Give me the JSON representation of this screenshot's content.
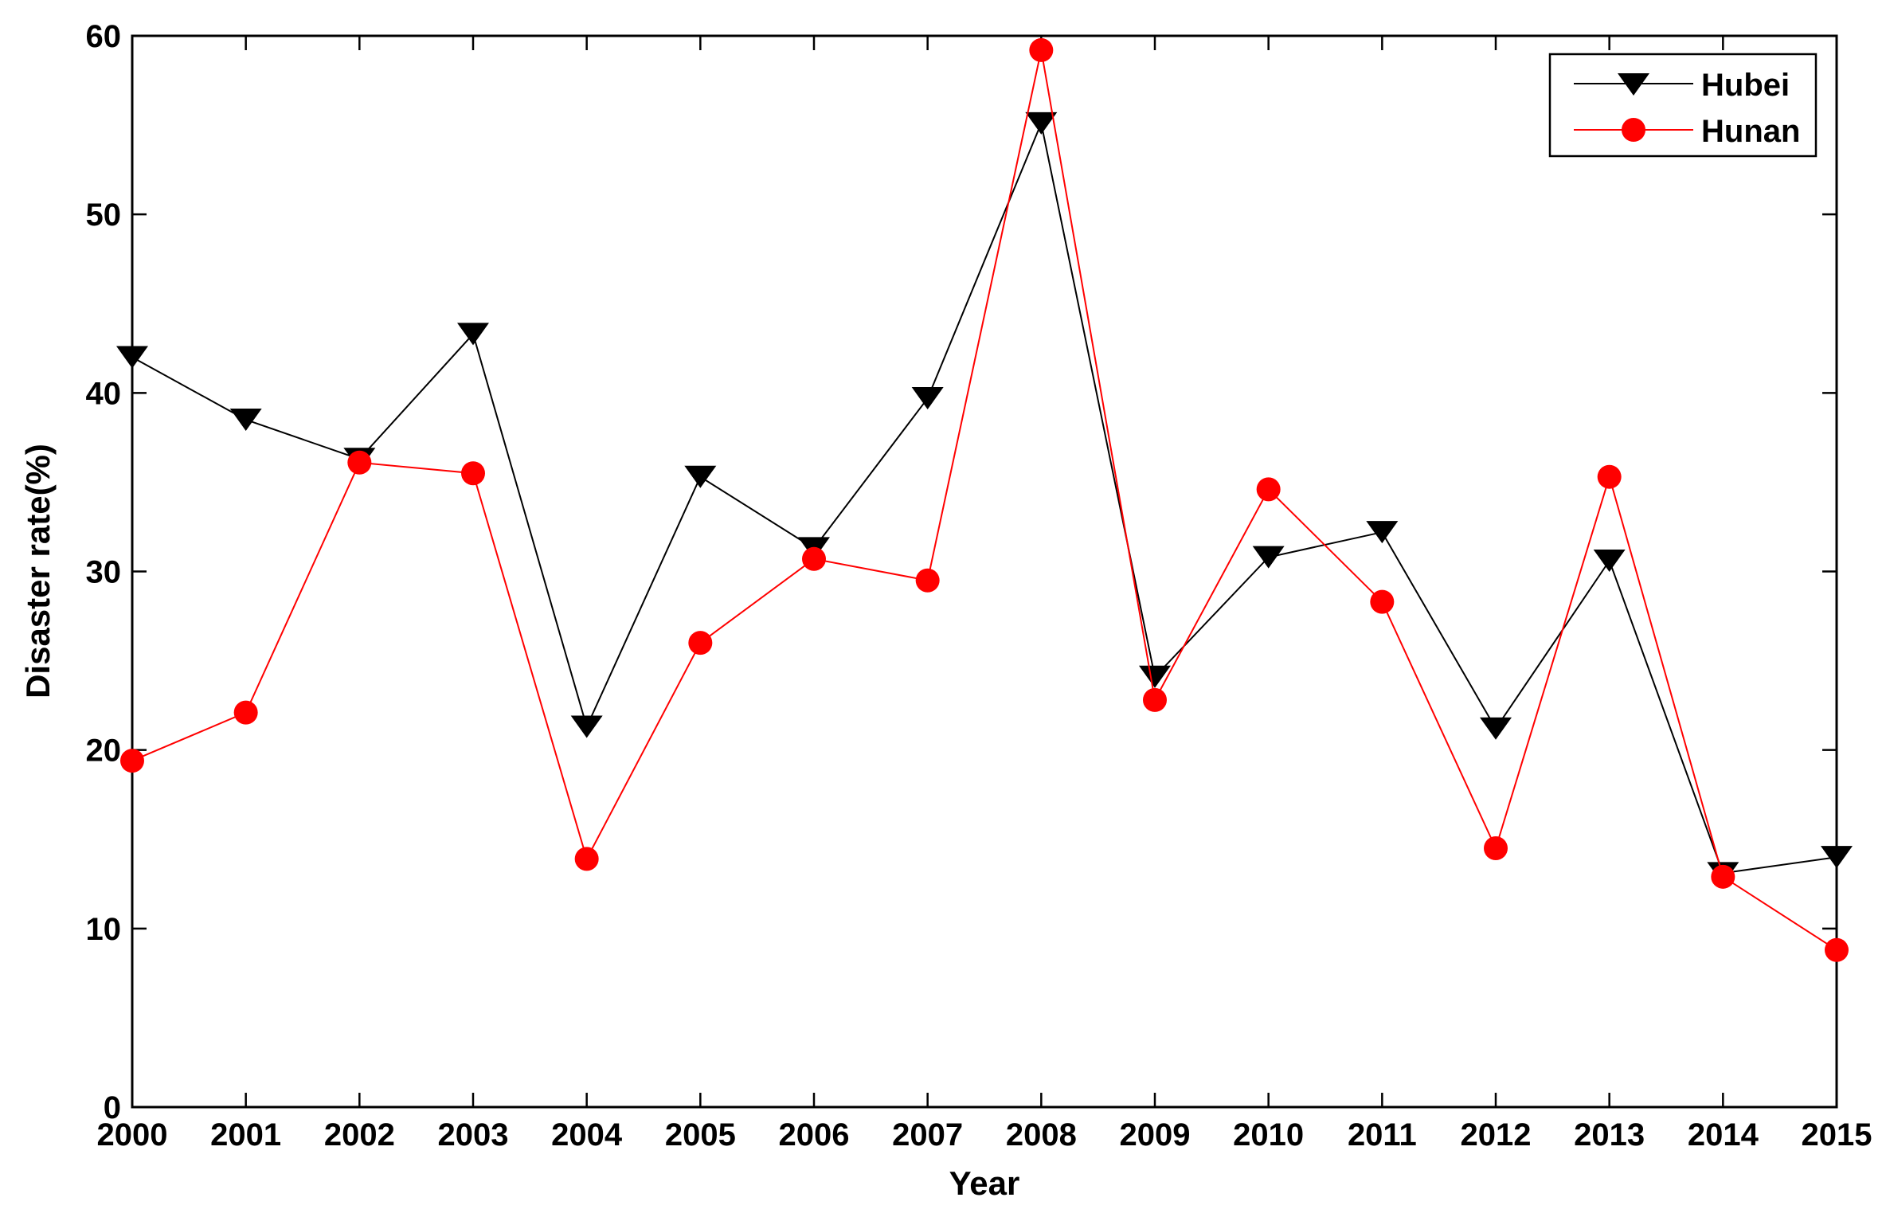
{
  "chart_data": {
    "type": "line",
    "title": "",
    "xlabel": "Year",
    "ylabel": "Disaster rate(%)",
    "x": [
      2000,
      2001,
      2002,
      2003,
      2004,
      2005,
      2006,
      2007,
      2008,
      2009,
      2010,
      2011,
      2012,
      2013,
      2014,
      2015
    ],
    "xlim": [
      2000,
      2015
    ],
    "ylim": [
      0,
      60
    ],
    "yticks": [
      0,
      10,
      20,
      30,
      40,
      50,
      60
    ],
    "grid": false,
    "legend_position": "top-right",
    "series": [
      {
        "name": "Hubei",
        "color": "#000000",
        "marker": "triangle-down",
        "values": [
          42.0,
          38.5,
          36.3,
          43.3,
          21.3,
          35.3,
          31.3,
          39.7,
          55.1,
          24.1,
          30.8,
          32.2,
          21.2,
          30.6,
          13.1,
          14.0
        ]
      },
      {
        "name": "Hunan",
        "color": "#ff0000",
        "marker": "circle",
        "values": [
          19.4,
          22.1,
          36.1,
          35.5,
          13.9,
          26.0,
          30.7,
          29.5,
          59.2,
          22.8,
          34.6,
          28.3,
          14.5,
          35.3,
          12.9,
          8.8
        ]
      }
    ]
  }
}
